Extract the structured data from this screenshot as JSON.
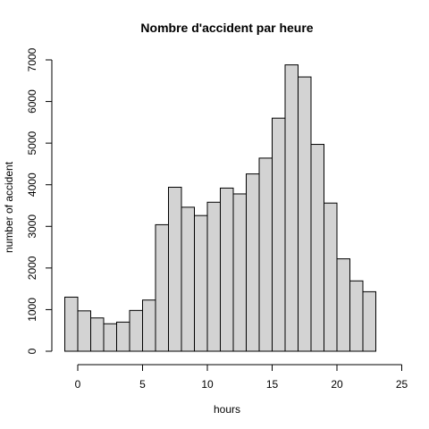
{
  "chart_data": {
    "type": "bar",
    "title": "Nombre d'accident par heure",
    "xlabel": "hours",
    "ylabel": "number of accident",
    "bin_width": 1,
    "bin_starts": [
      -1,
      0,
      1,
      2,
      3,
      4,
      5,
      6,
      7,
      8,
      9,
      10,
      11,
      12,
      13,
      14,
      15,
      16,
      17,
      18,
      19,
      20,
      21,
      22
    ],
    "values": [
      1300,
      970,
      800,
      660,
      700,
      980,
      1230,
      3040,
      3940,
      3460,
      3260,
      3580,
      3920,
      3780,
      4260,
      4640,
      5600,
      6880,
      6590,
      4970,
      3560,
      2220,
      1690,
      1430
    ],
    "xlim": [
      -1,
      25
    ],
    "ylim": [
      0,
      7000
    ],
    "x_ticks": [
      "0",
      "5",
      "10",
      "15",
      "20",
      "25"
    ],
    "y_ticks": [
      "0",
      "1000",
      "2000",
      "3000",
      "4000",
      "5000",
      "6000",
      "7000"
    ],
    "bar_color": "#d3d3d3",
    "grid": false,
    "legend": "none"
  }
}
